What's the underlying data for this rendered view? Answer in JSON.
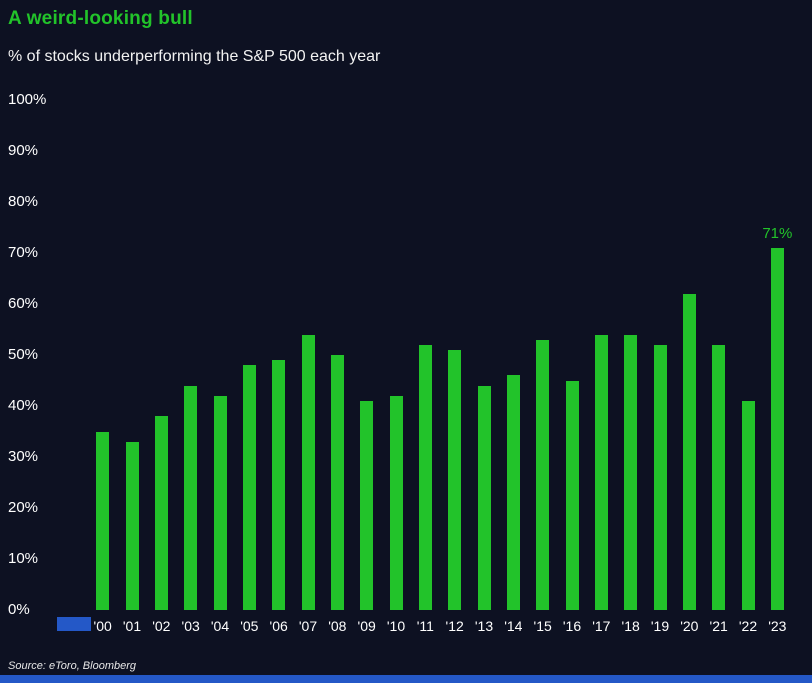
{
  "title": "A weird-looking bull",
  "subtitle": "% of stocks underperforming the S&P 500 each year",
  "source": "Source: eToro, Bloomberg",
  "colors": {
    "background": "#0d1122",
    "accent_green": "#22c32a",
    "text": "#ffffff",
    "bottom_strip_blue": "#2458c7"
  },
  "chart_data": {
    "type": "bar",
    "title": "A weird-looking bull",
    "subtitle": "% of stocks underperforming the S&P 500 each year",
    "categories": [
      "'00",
      "'01",
      "'02",
      "'03",
      "'04",
      "'05",
      "'06",
      "'07",
      "'08",
      "'09",
      "'10",
      "'11",
      "'12",
      "'13",
      "'14",
      "'15",
      "'16",
      "'17",
      "'18",
      "'19",
      "'20",
      "'21",
      "'22",
      "'23"
    ],
    "values": [
      35,
      33,
      38,
      44,
      42,
      48,
      49,
      54,
      50,
      41,
      42,
      52,
      51,
      44,
      46,
      53,
      45,
      54,
      54,
      52,
      62,
      52,
      41,
      71
    ],
    "xlabel": "",
    "ylabel": "",
    "ylim": [
      0,
      100
    ],
    "ytick_step": 10,
    "ytick_format": "percent",
    "grid": false,
    "legend": "none",
    "annotations": [
      {
        "category": "'23",
        "text": "71%"
      }
    ],
    "bar_color": "#22c32a"
  }
}
